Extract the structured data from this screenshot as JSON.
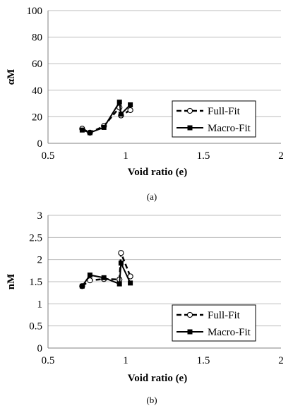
{
  "chart_data": [
    {
      "type": "line",
      "caption": "(a)",
      "xlabel": "Void ratio (e)",
      "ylabel": "αM",
      "xlim": [
        0.5,
        2
      ],
      "ylim": [
        0,
        100
      ],
      "xticks": [
        "0.5",
        "1",
        "1.5",
        "2"
      ],
      "yticks": [
        "0",
        "20",
        "40",
        "60",
        "80",
        "100"
      ],
      "grid": "horizontal",
      "legend": "right",
      "series": [
        {
          "name": "Full-Fit",
          "style": "dashed",
          "marker": "open-circle",
          "x": [
            0.72,
            0.77,
            0.86,
            0.96,
            0.97,
            1.03
          ],
          "y": [
            11,
            8,
            13,
            27,
            21,
            25
          ]
        },
        {
          "name": "Macro-Fit",
          "style": "solid",
          "marker": "filled-square",
          "x": [
            0.72,
            0.77,
            0.86,
            0.96,
            0.97,
            1.03
          ],
          "y": [
            10,
            8,
            12,
            31,
            22,
            29
          ]
        }
      ]
    },
    {
      "type": "line",
      "caption": "(b)",
      "xlabel": "Void ratio (e)",
      "ylabel": "nM",
      "xlim": [
        0.5,
        2
      ],
      "ylim": [
        0,
        3
      ],
      "xticks": [
        "0.5",
        "1",
        "1.5",
        "2"
      ],
      "yticks": [
        "0",
        "0.5",
        "1",
        "1.5",
        "2",
        "2.5",
        "3"
      ],
      "grid": "horizontal",
      "legend": "right",
      "series": [
        {
          "name": "Full-Fit",
          "style": "dashed",
          "marker": "open-circle",
          "x": [
            0.72,
            0.77,
            0.86,
            0.96,
            0.97,
            1.03
          ],
          "y": [
            1.4,
            1.53,
            1.56,
            1.55,
            2.15,
            1.62
          ]
        },
        {
          "name": "Macro-Fit",
          "style": "solid",
          "marker": "filled-square",
          "x": [
            0.72,
            0.77,
            0.86,
            0.96,
            0.97,
            1.03
          ],
          "y": [
            1.4,
            1.65,
            1.59,
            1.45,
            1.92,
            1.47
          ]
        }
      ]
    }
  ]
}
